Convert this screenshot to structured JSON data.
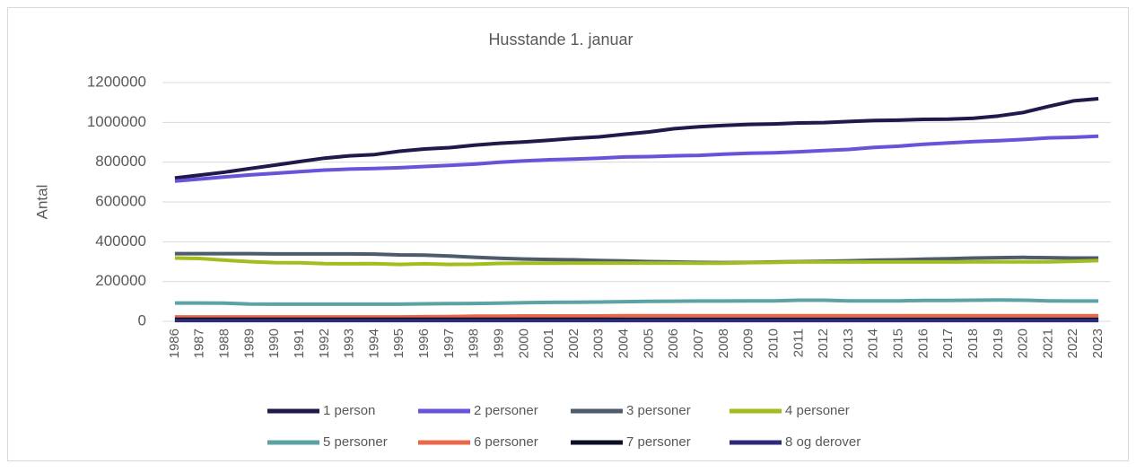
{
  "chart_data": {
    "type": "line",
    "title": "Husstande 1. januar",
    "y_label": "Antal",
    "categories": [
      "1986",
      "1987",
      "1988",
      "1989",
      "1990",
      "1991",
      "1992",
      "1993",
      "1994",
      "1995",
      "1996",
      "1997",
      "1998",
      "1999",
      "2000",
      "2001",
      "2002",
      "2003",
      "2004",
      "2005",
      "2006",
      "2007",
      "2008",
      "2009",
      "2010",
      "2011",
      "2012",
      "2013",
      "2014",
      "2015",
      "2016",
      "2017",
      "2018",
      "2019",
      "2020",
      "2021",
      "2022",
      "2023"
    ],
    "ylim": [
      0,
      1200000
    ],
    "yticks": [
      0,
      200000,
      400000,
      600000,
      800000,
      1000000,
      1200000
    ],
    "grid": true,
    "series": [
      {
        "name": "1 person",
        "color": "#1f1a4a",
        "values": [
          720000,
          735000,
          750000,
          768000,
          785000,
          803000,
          820000,
          832000,
          838000,
          855000,
          866000,
          873000,
          885000,
          895000,
          902000,
          910000,
          920000,
          927000,
          940000,
          952000,
          968000,
          978000,
          985000,
          990000,
          992000,
          997000,
          999000,
          1004000,
          1009000,
          1011000,
          1015000,
          1016000,
          1021000,
          1032000,
          1050000,
          1080000,
          1108000,
          1119000
        ]
      },
      {
        "name": "2 personer",
        "color": "#6655d8",
        "values": [
          705000,
          715000,
          726000,
          736000,
          744000,
          752000,
          760000,
          765000,
          768000,
          772000,
          778000,
          784000,
          790000,
          800000,
          806000,
          812000,
          815000,
          820000,
          826000,
          828000,
          832000,
          834000,
          840000,
          845000,
          847000,
          852000,
          858000,
          864000,
          874000,
          880000,
          890000,
          897000,
          903000,
          908000,
          914000,
          922000,
          925000,
          930000
        ]
      },
      {
        "name": "3 personer",
        "color": "#4d5b6b",
        "values": [
          340000,
          340000,
          340000,
          340000,
          339000,
          339000,
          339000,
          339000,
          338000,
          334000,
          333000,
          328000,
          322000,
          317000,
          313000,
          311000,
          309000,
          306000,
          303000,
          300000,
          298000,
          296000,
          295000,
          296000,
          298000,
          300000,
          302000,
          304000,
          307000,
          309000,
          312000,
          315000,
          318000,
          320000,
          321000,
          320000,
          318000,
          318000
        ]
      },
      {
        "name": "4 personer",
        "color": "#a2be1e",
        "values": [
          318000,
          316000,
          307000,
          300000,
          295000,
          294000,
          290000,
          289000,
          290000,
          286000,
          289000,
          286000,
          287000,
          291000,
          292000,
          292000,
          293000,
          293000,
          293000,
          293000,
          293000,
          292000,
          292000,
          295000,
          296000,
          298000,
          298000,
          298000,
          298000,
          298000,
          298000,
          298000,
          299000,
          299000,
          299000,
          299000,
          302000,
          305000
        ]
      },
      {
        "name": "5 personer",
        "color": "#5ca3a3",
        "values": [
          92000,
          92000,
          91000,
          87000,
          86000,
          86000,
          86000,
          86000,
          86000,
          86000,
          88000,
          89000,
          90000,
          91000,
          94000,
          95000,
          96000,
          97000,
          99000,
          100000,
          101000,
          102000,
          102000,
          103000,
          103000,
          106000,
          106000,
          103000,
          103000,
          103000,
          105000,
          105000,
          106000,
          107000,
          106000,
          103000,
          102000,
          102000
        ]
      },
      {
        "name": "6 personer",
        "color": "#e8684a",
        "values": [
          22000,
          22000,
          22000,
          22000,
          22000,
          22000,
          22000,
          22000,
          22000,
          22000,
          23000,
          24000,
          26000,
          26000,
          27000,
          27000,
          27000,
          27000,
          28000,
          28000,
          28000,
          28000,
          28000,
          28000,
          28000,
          28000,
          28000,
          28000,
          28000,
          28000,
          28000,
          28000,
          28000,
          28000,
          28000,
          28000,
          28000,
          28000
        ]
      },
      {
        "name": "7 personer",
        "color": "#0d0d26",
        "values": [
          10000,
          10000,
          10000,
          10000,
          10000,
          10000,
          10000,
          10000,
          10000,
          10000,
          10000,
          10000,
          10000,
          10000,
          10000,
          10000,
          10000,
          10000,
          10000,
          10000,
          10000,
          10000,
          10000,
          10000,
          10000,
          10000,
          10000,
          10000,
          10000,
          10000,
          10000,
          10000,
          10000,
          10000,
          10000,
          10000,
          10000,
          10000
        ]
      },
      {
        "name": "8 og derover",
        "color": "#2d2a7a",
        "values": [
          4000,
          4000,
          4000,
          4000,
          4000,
          4000,
          4000,
          4000,
          4000,
          4000,
          4000,
          4000,
          4000,
          4000,
          4000,
          4000,
          4000,
          4000,
          4000,
          4000,
          4000,
          4000,
          4000,
          4000,
          4000,
          4000,
          4000,
          4000,
          4000,
          4000,
          4000,
          4000,
          4000,
          4000,
          4000,
          4000,
          4000,
          4000
        ]
      }
    ]
  }
}
